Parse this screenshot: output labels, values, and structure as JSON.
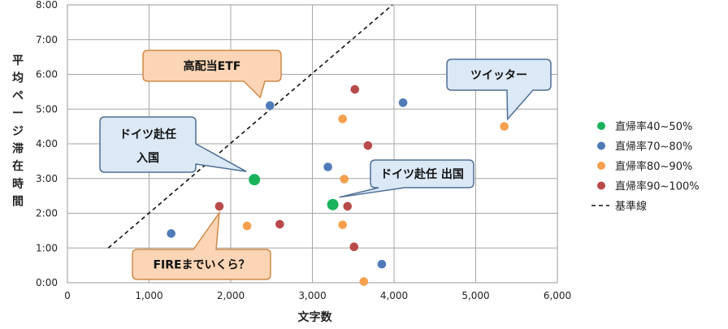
{
  "chart_data": {
    "type": "scatter",
    "xlabel": "文字数",
    "ylabel": "平均ページ滞在時間",
    "xlim": [
      0,
      6000
    ],
    "ylim": [
      0,
      480
    ],
    "x_ticks": [
      "0",
      "1,000",
      "2,000",
      "3,000",
      "4,000",
      "5,000",
      "6,000"
    ],
    "y_ticks": [
      "0:00",
      "1:00",
      "2:00",
      "3:00",
      "4:00",
      "5:00",
      "6:00",
      "7:00",
      "8:00"
    ],
    "y_unit": "seconds (m:ss)",
    "grid": true,
    "legend_position": "right",
    "series": [
      {
        "name": "直帰率40~50%",
        "color": "#19b25a",
        "points": [
          {
            "x": 2290,
            "y": 178
          },
          {
            "x": 3250,
            "y": 135
          }
        ]
      },
      {
        "name": "直帰率70~80%",
        "color": "#4f7cb9",
        "points": [
          {
            "x": 1270,
            "y": 85
          },
          {
            "x": 2480,
            "y": 306
          },
          {
            "x": 3190,
            "y": 200
          },
          {
            "x": 3850,
            "y": 32
          },
          {
            "x": 4110,
            "y": 311
          }
        ]
      },
      {
        "name": "直帰率80~90%",
        "color": "#f5a04e",
        "points": [
          {
            "x": 2200,
            "y": 98
          },
          {
            "x": 3370,
            "y": 283
          },
          {
            "x": 3390,
            "y": 179
          },
          {
            "x": 3370,
            "y": 100
          },
          {
            "x": 3630,
            "y": 2
          },
          {
            "x": 5350,
            "y": 270
          }
        ]
      },
      {
        "name": "直帰率90~100%",
        "color": "#b94a4a",
        "points": [
          {
            "x": 1860,
            "y": 132
          },
          {
            "x": 2600,
            "y": 101
          },
          {
            "x": 3430,
            "y": 132
          },
          {
            "x": 3510,
            "y": 62
          },
          {
            "x": 3520,
            "y": 334
          },
          {
            "x": 3680,
            "y": 237
          }
        ]
      }
    ],
    "reference_line": {
      "name": "基準線",
      "style": "dashed",
      "from": {
        "x": 500,
        "y": 60
      },
      "to": {
        "x": 3980,
        "y": 480
      }
    },
    "annotations": [
      {
        "text": "高配当ETF",
        "target": {
          "x": 2480,
          "y": 306
        }
      },
      {
        "text": "ツイッター",
        "target": {
          "x": 5350,
          "y": 270
        }
      },
      {
        "text": "ドイツ赴任",
        "text2": "入国",
        "target": {
          "x": 2290,
          "y": 178
        }
      },
      {
        "text": "ドイツ赴任 出国",
        "target": {
          "x": 3250,
          "y": 135
        }
      },
      {
        "text": "FIREまでいくら？",
        "target": {
          "x": 1860,
          "y": 132
        }
      }
    ]
  }
}
